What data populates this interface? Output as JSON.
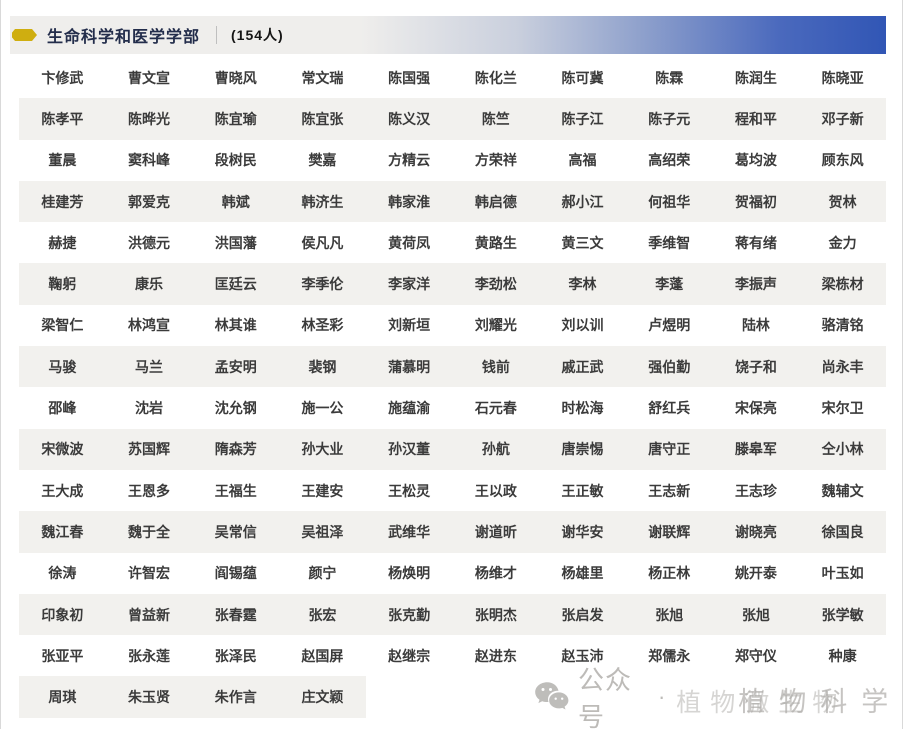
{
  "header": {
    "title": "生命科学和医学学部",
    "count": "(154人)",
    "tag_color": "#cfae10",
    "gradient_start": "#efeeec",
    "gradient_end": "#3156b5"
  },
  "table": {
    "columns": 10,
    "stripe_color": "#f2f1ee",
    "names": [
      "卞修武",
      "曹文宣",
      "曹晓风",
      "常文瑞",
      "陈国强",
      "陈化兰",
      "陈可冀",
      "陈霖",
      "陈润生",
      "陈晓亚",
      "陈孝平",
      "陈晔光",
      "陈宜瑜",
      "陈宜张",
      "陈义汉",
      "陈竺",
      "陈子江",
      "陈子元",
      "程和平",
      "邓子新",
      "董晨",
      "窦科峰",
      "段树民",
      "樊嘉",
      "方精云",
      "方荣祥",
      "高福",
      "高绍荣",
      "葛均波",
      "顾东风",
      "桂建芳",
      "郭爱克",
      "韩斌",
      "韩济生",
      "韩家淮",
      "韩启德",
      "郝小江",
      "何祖华",
      "贺福初",
      "贺林",
      "赫捷",
      "洪德元",
      "洪国藩",
      "侯凡凡",
      "黄荷凤",
      "黄路生",
      "黄三文",
      "季维智",
      "蒋有绪",
      "金力",
      "鞠躬",
      "康乐",
      "匡廷云",
      "李季伦",
      "李家洋",
      "李劲松",
      "李林",
      "李蓬",
      "李振声",
      "梁栋材",
      "梁智仁",
      "林鸿宣",
      "林其谁",
      "林圣彩",
      "刘新垣",
      "刘耀光",
      "刘以训",
      "卢煜明",
      "陆林",
      "骆清铭",
      "马骏",
      "马兰",
      "孟安明",
      "裴钢",
      "蒲慕明",
      "钱前",
      "戚正武",
      "强伯勤",
      "饶子和",
      "尚永丰",
      "邵峰",
      "沈岩",
      "沈允钢",
      "施一公",
      "施蕴渝",
      "石元春",
      "时松海",
      "舒红兵",
      "宋保亮",
      "宋尔卫",
      "宋微波",
      "苏国辉",
      "隋森芳",
      "孙大业",
      "孙汉董",
      "孙航",
      "唐崇惕",
      "唐守正",
      "滕皋军",
      "仝小林",
      "王大成",
      "王恩多",
      "王福生",
      "王建安",
      "王松灵",
      "王以政",
      "王正敏",
      "王志新",
      "王志珍",
      "魏辅文",
      "魏江春",
      "魏于全",
      "吴常信",
      "吴祖泽",
      "武维华",
      "谢道昕",
      "谢华安",
      "谢联辉",
      "谢晓亮",
      "徐国良",
      "徐涛",
      "许智宏",
      "阎锡蕴",
      "颜宁",
      "杨焕明",
      "杨维才",
      "杨雄里",
      "杨正林",
      "姚开泰",
      "叶玉如",
      "印象初",
      "曾益新",
      "张春霆",
      "张宏",
      "张克勤",
      "张明杰",
      "张启发",
      "张旭",
      "张旭",
      "张学敏",
      "张亚平",
      "张永莲",
      "张泽民",
      "赵国屏",
      "赵继宗",
      "赵进东",
      "赵玉沛",
      "郑儒永",
      "郑守仪",
      "种康",
      "周琪",
      "朱玉贤",
      "朱作言",
      "庄文颖"
    ]
  },
  "watermark": {
    "icon": "wechat-icon",
    "prefix": "公众号",
    "dot": "·",
    "text_back": "植物微生物",
    "text_front": "植物科学"
  }
}
